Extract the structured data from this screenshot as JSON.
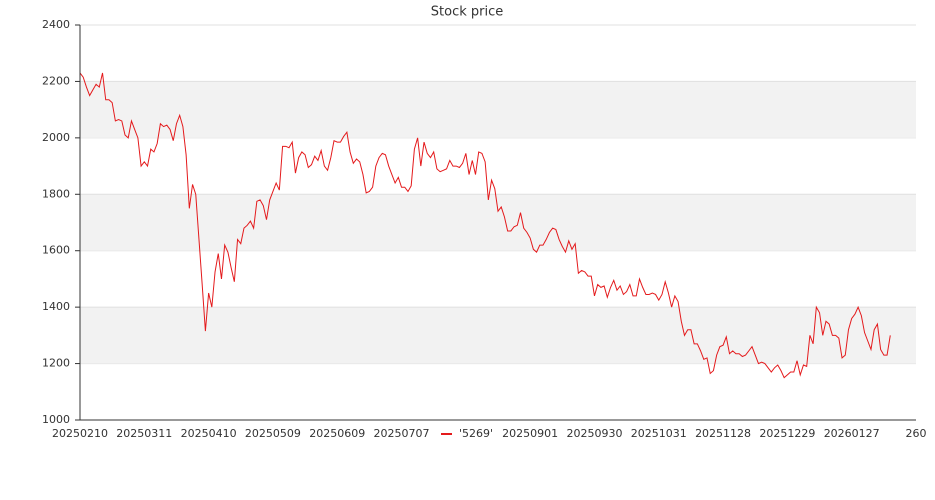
{
  "chart_data": {
    "type": "line",
    "title": "Stock price",
    "categories": [
      "20250210",
      null,
      null,
      null,
      null,
      null,
      null,
      null,
      null,
      null,
      null,
      null,
      null,
      null,
      null,
      null,
      null,
      null,
      null,
      null,
      "20250311",
      null,
      null,
      null,
      null,
      null,
      null,
      null,
      null,
      null,
      null,
      null,
      null,
      null,
      null,
      null,
      null,
      null,
      null,
      null,
      "20250410",
      null,
      null,
      null,
      null,
      null,
      null,
      null,
      null,
      null,
      null,
      null,
      null,
      null,
      null,
      null,
      null,
      null,
      null,
      null,
      "20250509",
      null,
      null,
      null,
      null,
      null,
      null,
      null,
      null,
      null,
      null,
      null,
      null,
      null,
      null,
      null,
      null,
      null,
      null,
      null,
      "20250609",
      null,
      null,
      null,
      null,
      null,
      null,
      null,
      null,
      null,
      null,
      null,
      null,
      null,
      null,
      null,
      null,
      null,
      null,
      null,
      "20250707",
      null,
      null,
      null,
      null,
      null,
      null,
      null,
      null,
      null,
      null,
      null,
      null,
      null,
      null,
      null,
      null,
      null,
      null,
      null,
      null,
      null,
      null,
      null,
      null,
      null,
      null,
      null,
      null,
      null,
      null,
      null,
      null,
      null,
      null,
      null,
      null,
      null,
      null,
      null,
      "20250901",
      null,
      null,
      null,
      null,
      null,
      null,
      null,
      null,
      null,
      null,
      null,
      null,
      null,
      null,
      null,
      null,
      null,
      null,
      null,
      "20250930",
      null,
      null,
      null,
      null,
      null,
      null,
      null,
      null,
      null,
      null,
      null,
      null,
      null,
      null,
      null,
      null,
      null,
      null,
      null,
      "20251031",
      null,
      null,
      null,
      null,
      null,
      null,
      null,
      null,
      null,
      null,
      null,
      null,
      null,
      null,
      null,
      null,
      null,
      null,
      null,
      "20251128",
      null,
      null,
      null,
      null,
      null,
      null,
      null,
      null,
      null,
      null,
      null,
      null,
      null,
      null,
      null,
      null,
      null,
      null,
      null,
      "20251229",
      null,
      null,
      null,
      null,
      null,
      null,
      null,
      null,
      null,
      null,
      null,
      null,
      null,
      null,
      null,
      null,
      null,
      null,
      null,
      "20260127",
      null,
      null,
      null,
      null,
      null,
      null,
      null,
      null,
      null,
      null,
      null,
      null,
      null,
      null,
      null,
      null,
      null,
      null,
      null,
      "260"
    ],
    "series": [
      {
        "name": "'5269'",
        "color": "#e41a1c",
        "values": [
          2230,
          2215,
          2180,
          2150,
          2170,
          2190,
          2180,
          2230,
          2135,
          2135,
          2125,
          2060,
          2065,
          2060,
          2010,
          2000,
          2060,
          2030,
          2000,
          1900,
          1915,
          1900,
          1960,
          1950,
          1980,
          2050,
          2040,
          2045,
          2030,
          1990,
          2050,
          2080,
          2040,
          1940,
          1750,
          1835,
          1800,
          1640,
          1480,
          1315,
          1450,
          1400,
          1525,
          1590,
          1500,
          1620,
          1595,
          1540,
          1490,
          1640,
          1625,
          1680,
          1690,
          1705,
          1680,
          1775,
          1780,
          1760,
          1710,
          1780,
          1810,
          1840,
          1815,
          1970,
          1970,
          1965,
          1985,
          1875,
          1930,
          1950,
          1940,
          1895,
          1905,
          1935,
          1920,
          1955,
          1900,
          1885,
          1930,
          1990,
          1985,
          1985,
          2005,
          2020,
          1950,
          1910,
          1925,
          1915,
          1870,
          1805,
          1810,
          1825,
          1900,
          1930,
          1945,
          1940,
          1900,
          1870,
          1840,
          1860,
          1825,
          1825,
          1810,
          1830,
          1960,
          2000,
          1900,
          1985,
          1945,
          1930,
          1950,
          1890,
          1880,
          1885,
          1890,
          1920,
          1900,
          1900,
          1895,
          1910,
          1945,
          1870,
          1920,
          1870,
          1950,
          1945,
          1915,
          1780,
          1850,
          1820,
          1740,
          1755,
          1720,
          1670,
          1670,
          1685,
          1690,
          1735,
          1680,
          1665,
          1645,
          1605,
          1595,
          1620,
          1620,
          1640,
          1665,
          1680,
          1675,
          1640,
          1615,
          1595,
          1635,
          1605,
          1625,
          1520,
          1530,
          1525,
          1510,
          1510,
          1440,
          1480,
          1470,
          1475,
          1435,
          1470,
          1495,
          1460,
          1475,
          1445,
          1455,
          1480,
          1440,
          1440,
          1500,
          1470,
          1445,
          1445,
          1450,
          1445,
          1425,
          1445,
          1490,
          1450,
          1400,
          1440,
          1420,
          1350,
          1300,
          1320,
          1320,
          1270,
          1270,
          1245,
          1215,
          1220,
          1165,
          1175,
          1230,
          1260,
          1265,
          1295,
          1235,
          1245,
          1235,
          1235,
          1225,
          1230,
          1245,
          1260,
          1230,
          1200,
          1205,
          1200,
          1185,
          1170,
          1185,
          1195,
          1175,
          1150,
          1160,
          1170,
          1170,
          1210,
          1160,
          1195,
          1190,
          1300,
          1270,
          1400,
          1380,
          1300,
          1350,
          1340,
          1300,
          1300,
          1290,
          1220,
          1230,
          1320,
          1360,
          1375,
          1400,
          1370,
          1310,
          1280,
          1250,
          1320,
          1340,
          1250,
          1230,
          1230,
          1300,
          null,
          null,
          null,
          null,
          null,
          null,
          null,
          null
        ]
      }
    ],
    "ylim": [
      1000,
      2400
    ],
    "yticks": [
      1000,
      1200,
      1400,
      1600,
      1800,
      2000,
      2200,
      2400
    ],
    "grid": true,
    "legend": "bottom"
  }
}
